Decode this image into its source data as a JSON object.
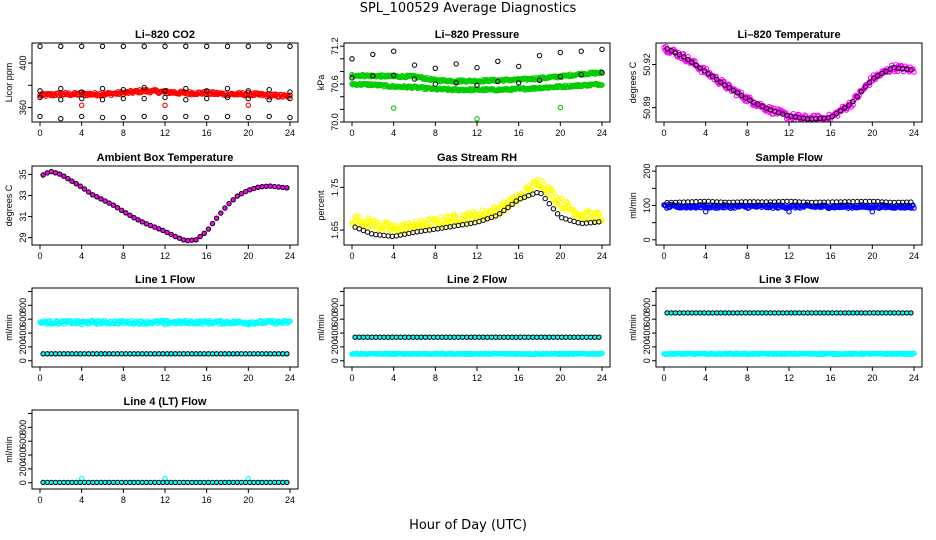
{
  "figure": {
    "title": "SPL_100529  Average Diagnostics",
    "xlabel": "Hour of Day (UTC)"
  },
  "chart_data": [
    {
      "type": "scatter",
      "title": "Li–820 CO2",
      "ylabel": "Licor ppm",
      "xlim": [
        0,
        24
      ],
      "ylim": [
        347,
        418
      ],
      "xticks": [
        0,
        4,
        8,
        12,
        16,
        20,
        24
      ],
      "yticks": [
        360,
        380,
        400
      ],
      "ytick_labels": [
        "360",
        "",
        "400"
      ],
      "series": [
        {
          "style": "band",
          "color": "#ff0000",
          "x": [
            0,
            2,
            4,
            6,
            8,
            10,
            12,
            14,
            16,
            18,
            20,
            22,
            24
          ],
          "y": [
            371,
            372,
            372,
            372,
            373,
            375,
            374,
            373,
            373,
            372,
            372,
            371,
            370
          ],
          "spread": 1.5
        },
        {
          "style": "cluster",
          "color": "#000000",
          "x": [
            0,
            2,
            4,
            6,
            8,
            10,
            12,
            14,
            16,
            18,
            20,
            22,
            24
          ],
          "values": [
            [
              352,
              369,
              375,
              415
            ],
            [
              350,
              367,
              377,
              415
            ],
            [
              352,
              368,
              374,
              415
            ],
            [
              351,
              367,
              377,
              415
            ],
            [
              351,
              368,
              376,
              415
            ],
            [
              352,
              368,
              378,
              415
            ],
            [
              351,
              369,
              375,
              415
            ],
            [
              352,
              367,
              377,
              415
            ],
            [
              351,
              368,
              375,
              415
            ],
            [
              352,
              369,
              377,
              415
            ],
            [
              351,
              368,
              375,
              415
            ],
            [
              352,
              367,
              376,
              415
            ],
            [
              351,
              368,
              374,
              415
            ]
          ]
        },
        {
          "style": "points",
          "color": "#ff0000",
          "x": [
            4,
            12,
            20
          ],
          "y": [
            362,
            362,
            362
          ]
        }
      ]
    },
    {
      "type": "scatter",
      "title": "Li–820 Pressure",
      "ylabel": "kPa",
      "xlim": [
        0,
        24
      ],
      "ylim": [
        70.0,
        71.25
      ],
      "xticks": [
        0,
        4,
        8,
        12,
        16,
        20,
        24
      ],
      "yticks": [
        70.0,
        70.2,
        70.4,
        70.6,
        70.8,
        71.0,
        71.2
      ],
      "ytick_labels": [
        "70.0",
        "",
        "",
        "70.6",
        "",
        "",
        "71.2"
      ],
      "series": [
        {
          "style": "band",
          "color": "#00cc00",
          "x": [
            0,
            2,
            4,
            6,
            8,
            10,
            12,
            14,
            16,
            18,
            20,
            22,
            24
          ],
          "y": [
            70.74,
            70.73,
            70.72,
            70.72,
            70.66,
            70.65,
            70.65,
            70.66,
            70.67,
            70.69,
            70.72,
            70.76,
            70.78
          ],
          "spread": 0.018
        },
        {
          "style": "band",
          "color": "#00cc00",
          "x": [
            0,
            2,
            4,
            6,
            8,
            10,
            12,
            14,
            16,
            18,
            20,
            22,
            24
          ],
          "y": [
            70.6,
            70.59,
            70.56,
            70.55,
            70.52,
            70.51,
            70.51,
            70.51,
            70.52,
            70.54,
            70.56,
            70.58,
            70.6
          ],
          "spread": 0.018
        },
        {
          "style": "points",
          "color": "#00cc00",
          "x": [
            4,
            12,
            20
          ],
          "y": [
            70.22,
            70.05,
            70.23
          ]
        },
        {
          "style": "cluster",
          "color": "#000000",
          "x": [
            0,
            2,
            4,
            6,
            8,
            10,
            12,
            14,
            16,
            18,
            20,
            22,
            24
          ],
          "values": [
            [
              70.7,
              71.0
            ],
            [
              70.73,
              71.07
            ],
            [
              70.74,
              71.12
            ],
            [
              70.68,
              70.9
            ],
            [
              70.6,
              70.85
            ],
            [
              70.62,
              70.92
            ],
            [
              70.58,
              70.86
            ],
            [
              70.64,
              70.96
            ],
            [
              70.62,
              70.88
            ],
            [
              70.66,
              71.05
            ],
            [
              70.72,
              71.1
            ],
            [
              70.75,
              71.12
            ],
            [
              70.78,
              71.15
            ]
          ]
        }
      ]
    },
    {
      "type": "scatter",
      "title": "Li–820 Temperature",
      "ylabel": "degrees C",
      "xlim": [
        0,
        24
      ],
      "ylim": [
        50.88,
        50.935
      ],
      "xticks": [
        0,
        4,
        8,
        12,
        16,
        20,
        24
      ],
      "yticks": [
        50.89,
        50.92
      ],
      "ytick_labels": [
        "50.89",
        "50.92"
      ],
      "series": [
        {
          "style": "band",
          "color": "#ff00ff",
          "x": [
            0,
            2,
            4,
            6,
            8,
            10,
            12,
            14,
            16,
            18,
            20,
            22,
            24
          ],
          "y": [
            50.932,
            50.925,
            50.915,
            50.905,
            50.896,
            50.889,
            50.884,
            50.882,
            50.883,
            50.893,
            50.91,
            50.918,
            50.916
          ],
          "spread": 0.0025
        },
        {
          "style": "line-points",
          "color": "#000000",
          "x": [
            0,
            2,
            4,
            6,
            8,
            10,
            12,
            14,
            16,
            18,
            20,
            22,
            24
          ],
          "y": [
            50.932,
            50.925,
            50.915,
            50.905,
            50.896,
            50.889,
            50.884,
            50.882,
            50.883,
            50.893,
            50.91,
            50.918,
            50.916
          ]
        }
      ]
    },
    {
      "type": "scatter",
      "title": "Ambient Box Temperature",
      "ylabel": "degrees C",
      "xlim": [
        0,
        24
      ],
      "ylim": [
        28.3,
        35.8
      ],
      "xticks": [
        0,
        4,
        8,
        12,
        16,
        20,
        24
      ],
      "yticks": [
        29,
        31,
        33,
        35
      ],
      "ytick_labels": [
        "29",
        "31",
        "33",
        "35"
      ],
      "series": [
        {
          "style": "line-points",
          "color": "#000000",
          "fill": "#ff00ff",
          "x": [
            0,
            1,
            2,
            3,
            4,
            5,
            6,
            7,
            8,
            9,
            10,
            11,
            12,
            13,
            14,
            15,
            16,
            17,
            18,
            19,
            20,
            21,
            22,
            23,
            24
          ],
          "y": [
            34.8,
            35.3,
            35.0,
            34.4,
            33.8,
            33.1,
            32.6,
            32.1,
            31.5,
            30.9,
            30.4,
            30.0,
            29.6,
            29.1,
            28.7,
            28.8,
            29.6,
            30.9,
            32.1,
            33.0,
            33.5,
            33.8,
            33.9,
            33.8,
            33.7
          ]
        }
      ]
    },
    {
      "type": "scatter",
      "title": "Gas Stream RH",
      "ylabel": "percent",
      "xlim": [
        0,
        24
      ],
      "ylim": [
        1.615,
        1.8
      ],
      "xticks": [
        0,
        4,
        8,
        12,
        16,
        20,
        24
      ],
      "yticks": [
        1.65,
        1.75
      ],
      "ytick_labels": [
        "1.65",
        "1.75"
      ],
      "series": [
        {
          "style": "band",
          "color": "#ffff00",
          "x": [
            0,
            2,
            4,
            6,
            8,
            10,
            12,
            14,
            16,
            18,
            20,
            22,
            24
          ],
          "y": [
            1.675,
            1.665,
            1.652,
            1.66,
            1.667,
            1.677,
            1.683,
            1.697,
            1.725,
            1.765,
            1.715,
            1.685,
            1.68
          ],
          "spread": 0.012
        },
        {
          "style": "line-points",
          "color": "#000000",
          "x": [
            0,
            2,
            4,
            6,
            8,
            10,
            12,
            14,
            16,
            18,
            20,
            22,
            24
          ],
          "y": [
            1.66,
            1.64,
            1.635,
            1.645,
            1.652,
            1.66,
            1.668,
            1.685,
            1.722,
            1.74,
            1.68,
            1.665,
            1.67
          ]
        }
      ]
    },
    {
      "type": "scatter",
      "title": "Sample Flow",
      "ylabel": "ml/min",
      "xlim": [
        0,
        24
      ],
      "ylim": [
        -15,
        215
      ],
      "xticks": [
        0,
        4,
        8,
        12,
        16,
        20,
        24
      ],
      "yticks": [
        0,
        50,
        100,
        150,
        200
      ],
      "ytick_labels": [
        "0",
        "",
        "100",
        "",
        "200"
      ],
      "series": [
        {
          "style": "band",
          "color": "#0000ff",
          "x": [
            0,
            4,
            8,
            12,
            16,
            20,
            24
          ],
          "y": [
            97,
            97,
            97,
            97,
            97,
            97,
            97
          ],
          "spread": 5
        },
        {
          "style": "points",
          "color": "#0000ff",
          "x": [
            4,
            12,
            20
          ],
          "y": [
            82,
            82,
            82
          ]
        },
        {
          "style": "line-points",
          "color": "#000000",
          "x": [
            0,
            2,
            4,
            6,
            8,
            10,
            12,
            14,
            16,
            18,
            20,
            22,
            24
          ],
          "y": [
            108,
            110,
            112,
            109,
            111,
            110,
            112,
            109,
            110,
            111,
            112,
            109,
            110
          ]
        }
      ]
    },
    {
      "type": "scatter",
      "title": "Line 1 Flow",
      "ylabel": "ml/min",
      "xlim": [
        0,
        24
      ],
      "ylim": [
        -90,
        1050
      ],
      "xticks": [
        0,
        4,
        8,
        12,
        16,
        20,
        24
      ],
      "yticks": [
        0,
        200,
        400,
        600,
        800,
        1000
      ],
      "ytick_labels": [
        "0",
        "200",
        "400",
        "600",
        "800",
        ""
      ],
      "series": [
        {
          "style": "band",
          "color": "#00ffff",
          "x": [
            0,
            4,
            8,
            12,
            16,
            20,
            24
          ],
          "y": [
            555,
            555,
            555,
            555,
            555,
            555,
            555
          ],
          "spread": 25
        },
        {
          "style": "points",
          "color": "#00ffff",
          "x": [
            4,
            12,
            20
          ],
          "y": [
            520,
            520,
            520
          ]
        },
        {
          "style": "line-points",
          "color": "#000000",
          "fill": "#00ffff",
          "x": [
            0,
            2,
            4,
            6,
            8,
            10,
            12,
            14,
            16,
            18,
            20,
            22,
            24
          ],
          "y": [
            100,
            100,
            100,
            100,
            100,
            100,
            100,
            100,
            100,
            100,
            100,
            100,
            100
          ]
        }
      ]
    },
    {
      "type": "scatter",
      "title": "Line 2 Flow",
      "ylabel": "ml/min",
      "xlim": [
        0,
        24
      ],
      "ylim": [
        -90,
        1050
      ],
      "xticks": [
        0,
        4,
        8,
        12,
        16,
        20,
        24
      ],
      "yticks": [
        0,
        200,
        400,
        600,
        800,
        1000
      ],
      "ytick_labels": [
        "0",
        "200",
        "400",
        "600",
        "800",
        ""
      ],
      "series": [
        {
          "style": "band",
          "color": "#00ffff",
          "x": [
            0,
            4,
            8,
            12,
            16,
            20,
            24
          ],
          "y": [
            100,
            100,
            100,
            100,
            100,
            100,
            100
          ],
          "spread": 6
        },
        {
          "style": "line-points",
          "color": "#000000",
          "fill": "#00ffff",
          "x": [
            0,
            2,
            4,
            6,
            8,
            10,
            12,
            14,
            16,
            18,
            20,
            22,
            24
          ],
          "y": [
            340,
            340,
            340,
            340,
            340,
            340,
            340,
            340,
            340,
            340,
            340,
            340,
            340
          ]
        }
      ]
    },
    {
      "type": "scatter",
      "title": "Line 3 Flow",
      "ylabel": "ml/min",
      "xlim": [
        0,
        24
      ],
      "ylim": [
        -90,
        1050
      ],
      "xticks": [
        0,
        4,
        8,
        12,
        16,
        20,
        24
      ],
      "yticks": [
        0,
        200,
        400,
        600,
        800,
        1000
      ],
      "ytick_labels": [
        "0",
        "200",
        "400",
        "600",
        "800",
        ""
      ],
      "series": [
        {
          "style": "band",
          "color": "#00ffff",
          "x": [
            0,
            4,
            8,
            12,
            16,
            20,
            24
          ],
          "y": [
            100,
            100,
            100,
            100,
            100,
            100,
            100
          ],
          "spread": 6
        },
        {
          "style": "line-points",
          "color": "#000000",
          "fill": "#00ffff",
          "x": [
            0,
            2,
            4,
            6,
            8,
            10,
            12,
            14,
            16,
            18,
            20,
            22,
            24
          ],
          "y": [
            690,
            690,
            690,
            690,
            690,
            690,
            690,
            690,
            690,
            690,
            690,
            690,
            690
          ]
        }
      ]
    },
    {
      "type": "scatter",
      "title": "Line 4 (LT) Flow",
      "ylabel": "ml/min",
      "xlim": [
        0,
        24
      ],
      "ylim": [
        -90,
        1050
      ],
      "xticks": [
        0,
        4,
        8,
        12,
        16,
        20,
        24
      ],
      "yticks": [
        0,
        200,
        400,
        600,
        800,
        1000
      ],
      "ytick_labels": [
        "0",
        "200",
        "400",
        "600",
        "800",
        ""
      ],
      "series": [
        {
          "style": "points",
          "color": "#00ffff",
          "x": [
            4,
            12,
            20
          ],
          "y": [
            60,
            60,
            60
          ]
        },
        {
          "style": "line-points",
          "color": "#000000",
          "fill": "#00ffff",
          "x": [
            0,
            2,
            4,
            6,
            8,
            10,
            12,
            14,
            16,
            18,
            20,
            22,
            24
          ],
          "y": [
            5,
            5,
            5,
            5,
            5,
            5,
            5,
            5,
            5,
            5,
            5,
            5,
            5
          ]
        }
      ]
    }
  ]
}
